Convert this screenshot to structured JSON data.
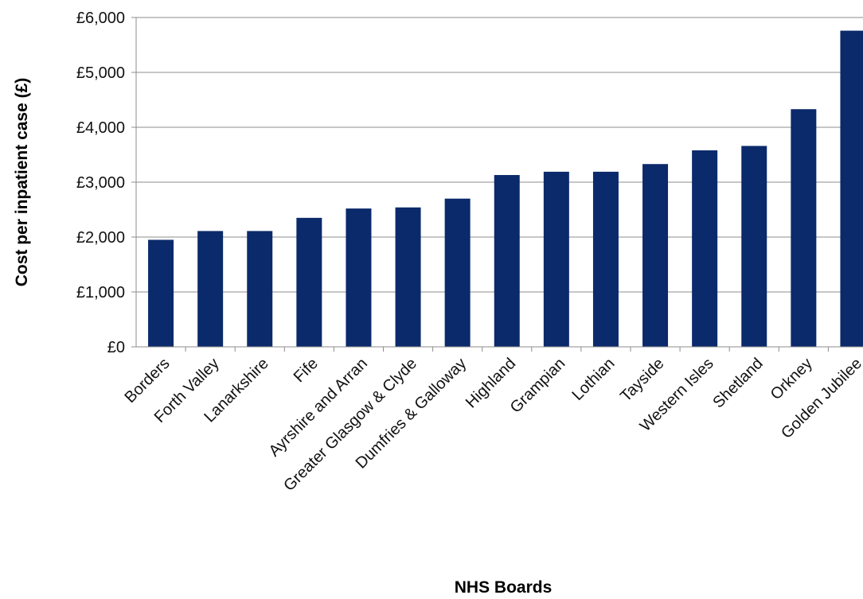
{
  "chart_data": {
    "type": "bar",
    "title": "",
    "xlabel": "NHS Boards",
    "ylabel": "Cost per inpatient case (£)",
    "ylim": [
      0,
      6000
    ],
    "yticks": [
      0,
      1000,
      2000,
      3000,
      4000,
      5000,
      6000
    ],
    "ytick_labels": [
      "£0",
      "£1,000",
      "£2,000",
      "£3,000",
      "£4,000",
      "£5,000",
      "£6,000"
    ],
    "grid": true,
    "legend": "none",
    "bar_color": "#0b2a6b",
    "categories": [
      "Borders",
      "Forth Valley",
      "Lanarkshire",
      "Fife",
      "Ayrshire and Arran",
      "Greater Glasgow & Clyde",
      "Dumfries & Galloway",
      "Highland",
      "Grampian",
      "Lothian",
      "Tayside",
      "Western Isles",
      "Shetland",
      "Orkney",
      "Golden Jubilee"
    ],
    "values": [
      1950,
      2110,
      2110,
      2350,
      2520,
      2540,
      2700,
      3130,
      3190,
      3190,
      3330,
      3580,
      3660,
      4330,
      5760
    ]
  }
}
